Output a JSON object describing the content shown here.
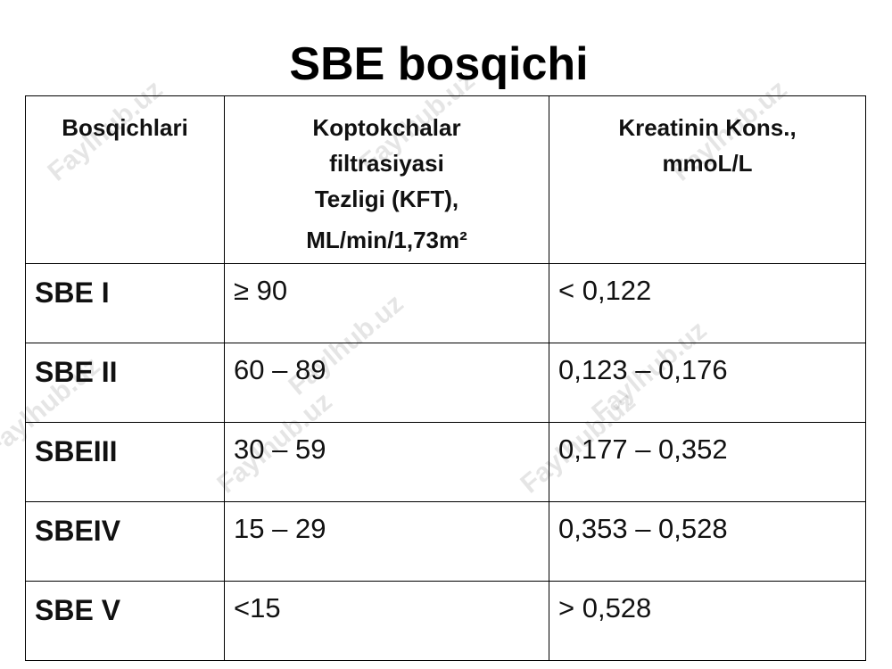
{
  "title": "SBE bosqichi",
  "watermark": "Faylhub.uz",
  "table": {
    "header": [
      [
        "Bosqichlari"
      ],
      [
        "Koptokchalar",
        "filtrasiyasi",
        "Tezligi (KFT),",
        "ML/min/1,73m²"
      ],
      [
        "Kreatinin Kons.,",
        "mmoL/L"
      ]
    ],
    "rows": [
      [
        "SBE I",
        "≥ 90",
        "< 0,122"
      ],
      [
        "SBE II",
        "60 – 89",
        "0,123 – 0,176"
      ],
      [
        "SBEIII",
        "30 – 59",
        "0,177 – 0,352"
      ],
      [
        "SBEIV",
        "15 – 29",
        "0,353 – 0,528"
      ],
      [
        "SBE V",
        "<15",
        "> 0,528"
      ]
    ]
  }
}
